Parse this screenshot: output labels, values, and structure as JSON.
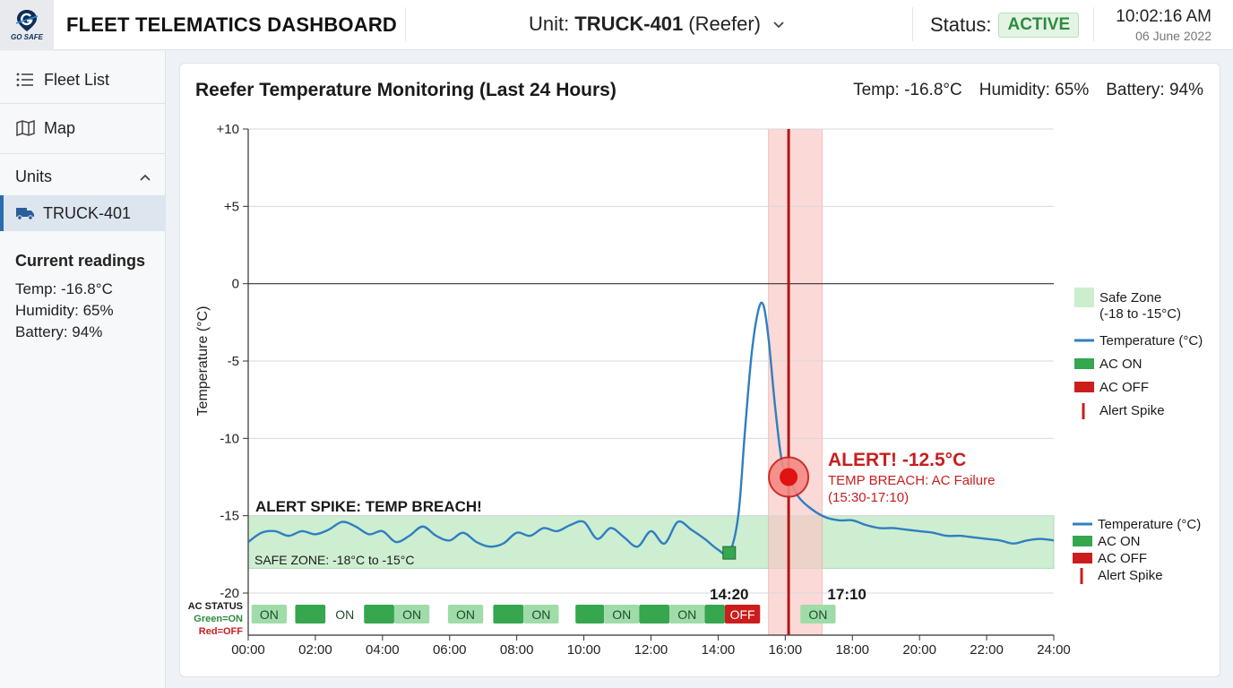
{
  "header": {
    "logo_text": "GO SAFE",
    "title": "FLEET TELEMATICS DASHBOARD",
    "unit_prefix": "Unit:",
    "unit_name": "TRUCK-401",
    "unit_type": "(Reefer)",
    "status_label": "Status:",
    "status_value": "ACTIVE",
    "time": "10:02:16 AM",
    "date": "06 June 2022"
  },
  "sidebar": {
    "fleet_list": "Fleet List",
    "map": "Map",
    "units_label": "Units",
    "active_unit": "TRUCK-401",
    "current_readings_title": "Current readings",
    "readings": [
      "Temp: -16.8°C",
      "Humidity: 65%",
      "Battery: 94%"
    ]
  },
  "card": {
    "title": "Reefer Temperature Monitoring (Last 24 Hours)",
    "temp": "Temp: -16.8°C",
    "humidity": "Humidity: 65%",
    "battery": "Battery: 94%"
  },
  "colors": {
    "line": "#2f7fc1",
    "safe_zone": "#c6ecc9",
    "alert_band": "#f8c9c6",
    "alert_red": "#c81e1e",
    "ac_on": "#36a64f",
    "ac_on_light": "#9fdca9",
    "ac_off": "#cc1d1d"
  },
  "chart_data": {
    "type": "line",
    "ylabel": "Temperature (°C)",
    "ylim": [
      -20,
      10
    ],
    "y_ticks": [
      10,
      5,
      0,
      -5,
      -10,
      -15,
      -20
    ],
    "y_tick_labels": [
      "+10",
      "+5",
      "0",
      "-5",
      "-10",
      "-15",
      "-20"
    ],
    "xlim": [
      0,
      24
    ],
    "x_ticks": [
      0,
      2,
      4,
      6,
      8,
      10,
      12,
      14,
      16,
      18,
      20,
      22,
      24
    ],
    "x_tick_labels": [
      "00:00",
      "02:00",
      "04:00",
      "06:00",
      "08:00",
      "10:00",
      "12:00",
      "14:00",
      "16:00",
      "18:00",
      "20:00",
      "22:00",
      "24:00"
    ],
    "grid": true,
    "safe_zone": [
      -18.4,
      -15
    ],
    "safe_zone_label": "SAFE ZONE: -18°C to -15°C",
    "spike_title": "ALERT SPIKE: TEMP BREACH!",
    "alert_window": [
      15.5,
      17.1
    ],
    "alert_line_x": 16.1,
    "marker_time_labels": [
      {
        "x": 14.33,
        "label": "14:20"
      },
      {
        "x": 17.17,
        "label": "17:10"
      }
    ],
    "series": [
      {
        "name": "Temperature (°C)",
        "x": [
          0,
          0.4,
          0.8,
          1.2,
          1.6,
          2.0,
          2.4,
          2.8,
          3.2,
          3.6,
          4.0,
          4.4,
          4.8,
          5.2,
          5.6,
          6.0,
          6.4,
          6.8,
          7.2,
          7.6,
          8.0,
          8.4,
          8.8,
          9.2,
          9.6,
          10.0,
          10.4,
          10.8,
          11.2,
          11.6,
          12.0,
          12.4,
          12.8,
          13.2,
          13.6,
          14.0,
          14.33,
          14.6,
          14.8,
          15.0,
          15.2,
          15.35,
          15.5,
          15.7,
          15.9,
          16.1,
          16.4,
          16.8,
          17.2,
          17.6,
          18.0,
          18.4,
          18.8,
          19.2,
          19.6,
          20.0,
          20.4,
          20.8,
          21.2,
          21.6,
          22.0,
          22.4,
          22.8,
          23.2,
          23.6,
          24.0
        ],
        "y": [
          -16.7,
          -16.1,
          -16.0,
          -16.3,
          -16.0,
          -16.2,
          -15.9,
          -15.4,
          -15.7,
          -16.2,
          -16.0,
          -16.7,
          -16.3,
          -15.7,
          -16.3,
          -16.6,
          -16.1,
          -16.7,
          -17.0,
          -16.8,
          -16.1,
          -16.3,
          -15.8,
          -16.0,
          -15.6,
          -15.4,
          -16.5,
          -15.8,
          -16.4,
          -17.0,
          -16.0,
          -16.8,
          -15.4,
          -15.9,
          -16.5,
          -17.2,
          -17.4,
          -15.0,
          -9.5,
          -4.5,
          -1.7,
          -1.4,
          -3.5,
          -8.0,
          -11.5,
          -12.5,
          -13.8,
          -14.6,
          -15.1,
          -15.3,
          -15.3,
          -15.6,
          -15.8,
          -15.8,
          -15.9,
          -16.0,
          -16.1,
          -16.3,
          -16.3,
          -16.4,
          -16.5,
          -16.6,
          -16.8,
          -16.6,
          -16.5,
          -16.6
        ]
      }
    ],
    "start_marker": {
      "x": 14.33,
      "y": -17.4
    },
    "alert_point": {
      "x": 16.1,
      "y": -12.5
    },
    "alert_callout": {
      "title": "ALERT! -12.5°C",
      "line1": "TEMP BREACH: AC Failure",
      "line2": "(15:30-17:10)"
    },
    "ac_status": {
      "title": "AC STATUS",
      "legend_on": "Green=ON",
      "legend_off": "Red=OFF",
      "segments": [
        {
          "start": 0.1,
          "end": 1.15,
          "state": "on_light",
          "label": "ON"
        },
        {
          "start": 1.4,
          "end": 2.3,
          "state": "on",
          "label": ""
        },
        {
          "start": 2.35,
          "end": 3.4,
          "state": "none",
          "label": "ON"
        },
        {
          "start": 3.45,
          "end": 4.35,
          "state": "on",
          "label": ""
        },
        {
          "start": 4.35,
          "end": 5.4,
          "state": "on_light",
          "label": "ON"
        },
        {
          "start": 5.95,
          "end": 7.0,
          "state": "on_light",
          "label": "ON"
        },
        {
          "start": 7.3,
          "end": 8.2,
          "state": "on",
          "label": ""
        },
        {
          "start": 8.2,
          "end": 9.25,
          "state": "on_light",
          "label": "ON"
        },
        {
          "start": 9.75,
          "end": 10.6,
          "state": "on",
          "label": ""
        },
        {
          "start": 10.6,
          "end": 11.65,
          "state": "on_light",
          "label": "ON"
        },
        {
          "start": 11.65,
          "end": 12.55,
          "state": "on",
          "label": ""
        },
        {
          "start": 12.55,
          "end": 13.6,
          "state": "on_light",
          "label": "ON"
        },
        {
          "start": 13.6,
          "end": 14.2,
          "state": "on",
          "label": ""
        },
        {
          "start": 14.2,
          "end": 15.25,
          "state": "off",
          "label": "OFF"
        },
        {
          "start": 16.45,
          "end": 17.5,
          "state": "on_light",
          "label": "ON"
        }
      ]
    },
    "legend": [
      {
        "label": "Safe Zone",
        "sub": "(-18 to -15°C)",
        "kind": "zone"
      },
      {
        "label": "Temperature (°C)",
        "kind": "line"
      },
      {
        "label": "AC ON",
        "kind": "on"
      },
      {
        "label": "AC OFF",
        "kind": "off"
      },
      {
        "label": "Alert Spike",
        "kind": "spike"
      }
    ],
    "legend_secondary": [
      {
        "label": "Temperature (°C)",
        "kind": "line"
      },
      {
        "label": "AC ON",
        "kind": "on"
      },
      {
        "label": "AC OFF",
        "kind": "off"
      },
      {
        "label": "Alert Spike",
        "kind": "spike"
      }
    ]
  }
}
